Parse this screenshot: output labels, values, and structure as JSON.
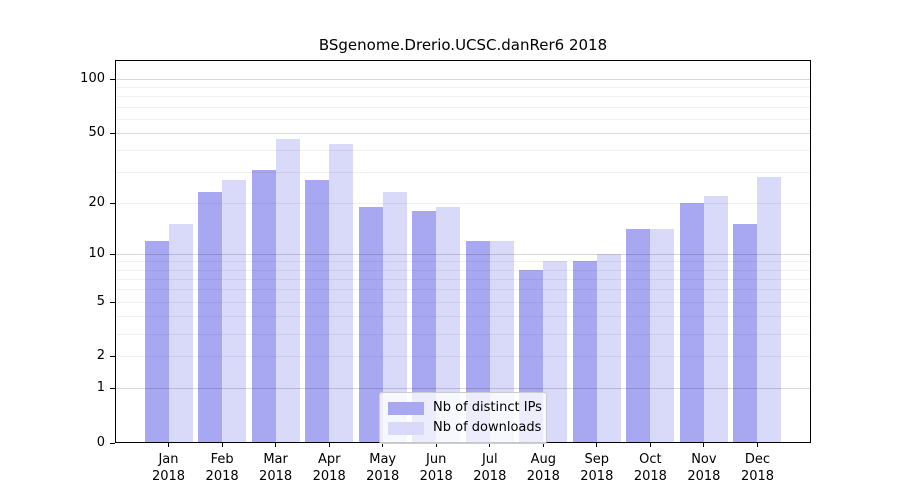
{
  "chart_data": {
    "type": "bar",
    "title": "BSgenome.Drerio.UCSC.danRer6 2018",
    "categories": [
      "Jan",
      "Feb",
      "Mar",
      "Apr",
      "May",
      "Jun",
      "Jul",
      "Aug",
      "Sep",
      "Oct",
      "Nov",
      "Dec"
    ],
    "year_label": "2018",
    "series": [
      {
        "name": "Nb of distinct IPs",
        "color": "#a8a8f2",
        "values": [
          12,
          23,
          31,
          27,
          19,
          18,
          12,
          8,
          9,
          14,
          20,
          15
        ]
      },
      {
        "name": "Nb of downloads",
        "color": "#d9d9f9",
        "values": [
          15,
          27,
          46,
          43,
          23,
          19,
          12,
          9,
          10,
          14,
          22,
          28
        ]
      }
    ],
    "xlabel": "",
    "ylabel": "",
    "yscale": "log10(1+value)",
    "ylim": [
      0,
      128
    ],
    "yticks": [
      0,
      1,
      2,
      5,
      10,
      20,
      50,
      100
    ],
    "gridlines_minor": [
      2,
      3,
      4,
      5,
      6,
      7,
      8,
      9,
      20,
      30,
      40,
      60,
      70,
      80,
      90
    ],
    "gridlines_major": [
      1,
      10,
      50,
      100
    ],
    "grid": true,
    "legend_position": "bottom-center",
    "axis_color": "#000000",
    "background": "#ffffff"
  }
}
